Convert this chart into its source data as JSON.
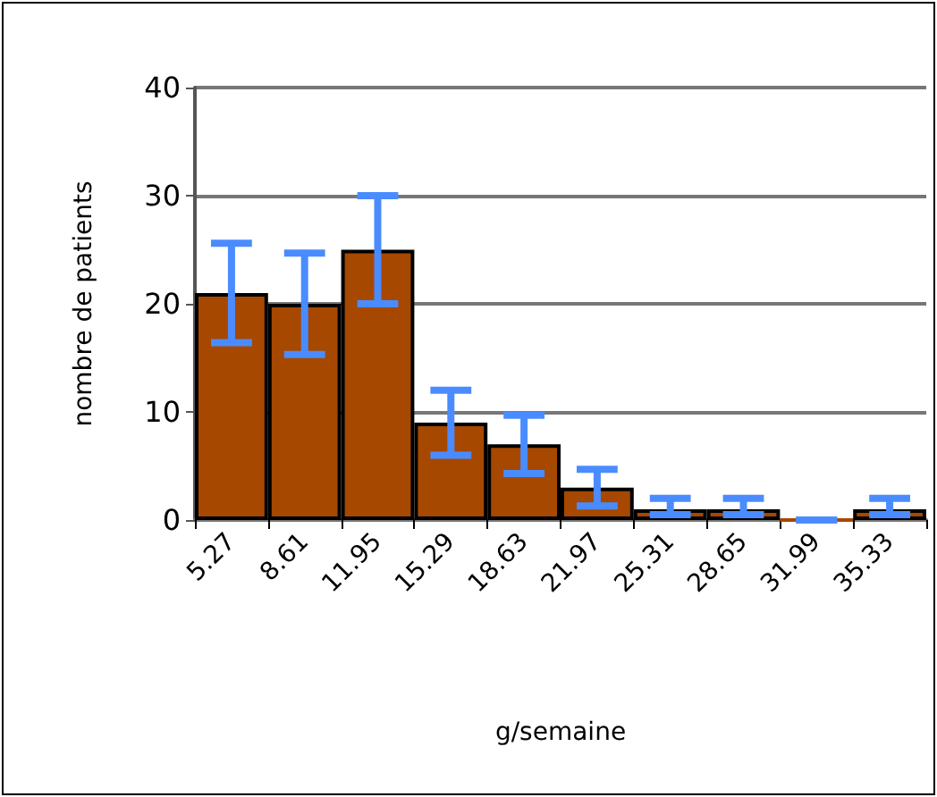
{
  "chart_data": {
    "type": "bar",
    "xlabel": "g/semaine",
    "ylabel": "nombre de patients",
    "categories": [
      "5.27",
      "8.61",
      "11.95",
      "15.29",
      "18.63",
      "21.97",
      "25.31",
      "28.65",
      "31.99",
      "35.33"
    ],
    "values": [
      21,
      20,
      25,
      9,
      7,
      3,
      1,
      1,
      0,
      1
    ],
    "errors": [
      4.6,
      4.7,
      5,
      3,
      2.7,
      1.7,
      [
        0.5,
        2
      ],
      [
        0.5,
        2
      ],
      0,
      [
        0.5,
        2
      ]
    ],
    "color": "#a64800",
    "ylim": [
      0,
      40
    ],
    "yticks": [
      0,
      10,
      20,
      30,
      40
    ],
    "grid": "y"
  }
}
